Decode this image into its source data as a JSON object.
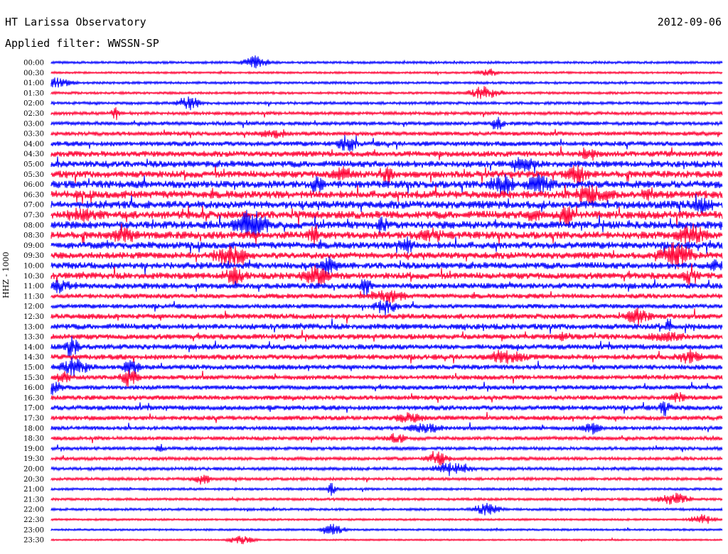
{
  "header": {
    "title": "HT Larissa Observatory",
    "date": "2012-09-06",
    "filter": "Applied filter: WWSSN-SP",
    "channel_label": "HHZ - 1000"
  },
  "colors": {
    "blue": "#0000ff",
    "red": "#ff0033"
  },
  "chart_data": {
    "type": "line",
    "subtype": "helicorder",
    "title": "HT Larissa Observatory",
    "ylabel": "HHZ - 1000",
    "row_labels": [
      "00:00",
      "00:30",
      "01:00",
      "01:30",
      "02:00",
      "02:30",
      "03:00",
      "03:30",
      "04:00",
      "04:30",
      "05:00",
      "05:30",
      "06:00",
      "06:30",
      "07:00",
      "07:30",
      "08:00",
      "08:30",
      "09:00",
      "09:30",
      "10:00",
      "10:30",
      "11:00",
      "11:30",
      "12:00",
      "12:30",
      "13:00",
      "13:30",
      "14:00",
      "14:30",
      "15:00",
      "15:30",
      "16:00",
      "16:30",
      "17:00",
      "17:30",
      "18:00",
      "18:30",
      "19:00",
      "19:30",
      "20:00",
      "20:30",
      "21:00",
      "21:30",
      "22:00",
      "22:30",
      "23:00",
      "23:30"
    ],
    "series_colors": [
      "blue",
      "red"
    ],
    "row_noise_level": [
      0.2,
      0.15,
      0.2,
      0.2,
      0.25,
      0.3,
      0.35,
      0.4,
      0.5,
      0.6,
      0.7,
      0.75,
      0.8,
      0.85,
      0.85,
      0.85,
      0.8,
      0.8,
      0.75,
      0.7,
      0.7,
      0.7,
      0.6,
      0.5,
      0.45,
      0.55,
      0.6,
      0.55,
      0.55,
      0.55,
      0.5,
      0.45,
      0.45,
      0.45,
      0.5,
      0.45,
      0.4,
      0.35,
      0.3,
      0.3,
      0.3,
      0.25,
      0.2,
      0.2,
      0.2,
      0.15,
      0.15,
      0.1
    ],
    "grid": false
  }
}
